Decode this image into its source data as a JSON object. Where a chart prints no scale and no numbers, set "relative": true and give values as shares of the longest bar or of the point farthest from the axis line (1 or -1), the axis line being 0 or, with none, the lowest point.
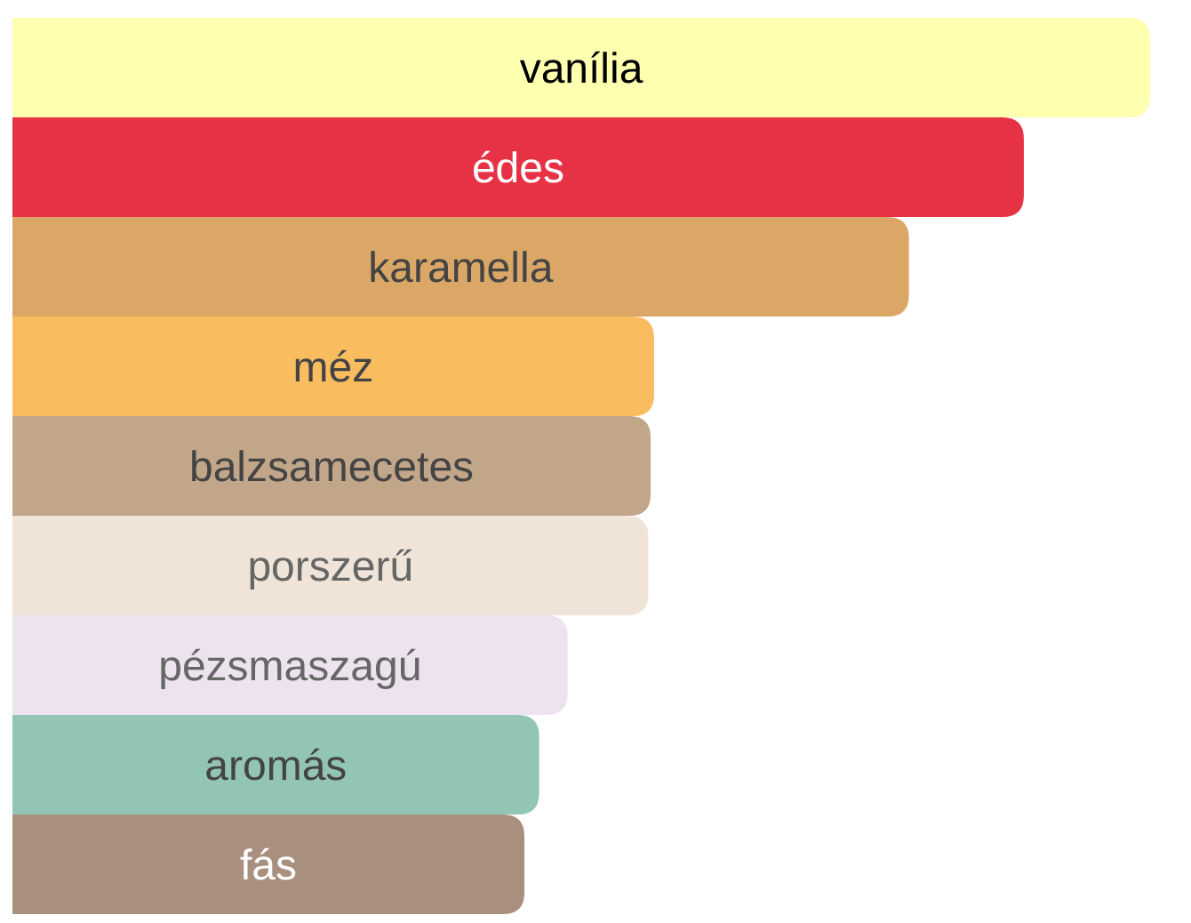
{
  "chart_data": {
    "type": "bar",
    "orientation": "horizontal",
    "relative": true,
    "data_labels": false,
    "categories": [
      "vanília",
      "édes",
      "karamella",
      "méz",
      "balzsamecetes",
      "porszerű",
      "pézsmaszagú",
      "aromás",
      "fás"
    ],
    "values": [
      1,
      0.889,
      0.788,
      0.564,
      0.561,
      0.559,
      0.488,
      0.463,
      0.45
    ],
    "colors": [
      "#ffffb0",
      "#e63244",
      "#dba766",
      "#f9bd60",
      "#c1a68a",
      "#f0e4d8",
      "#ede3ef",
      "#93c5b5",
      "#a88f7e"
    ]
  }
}
